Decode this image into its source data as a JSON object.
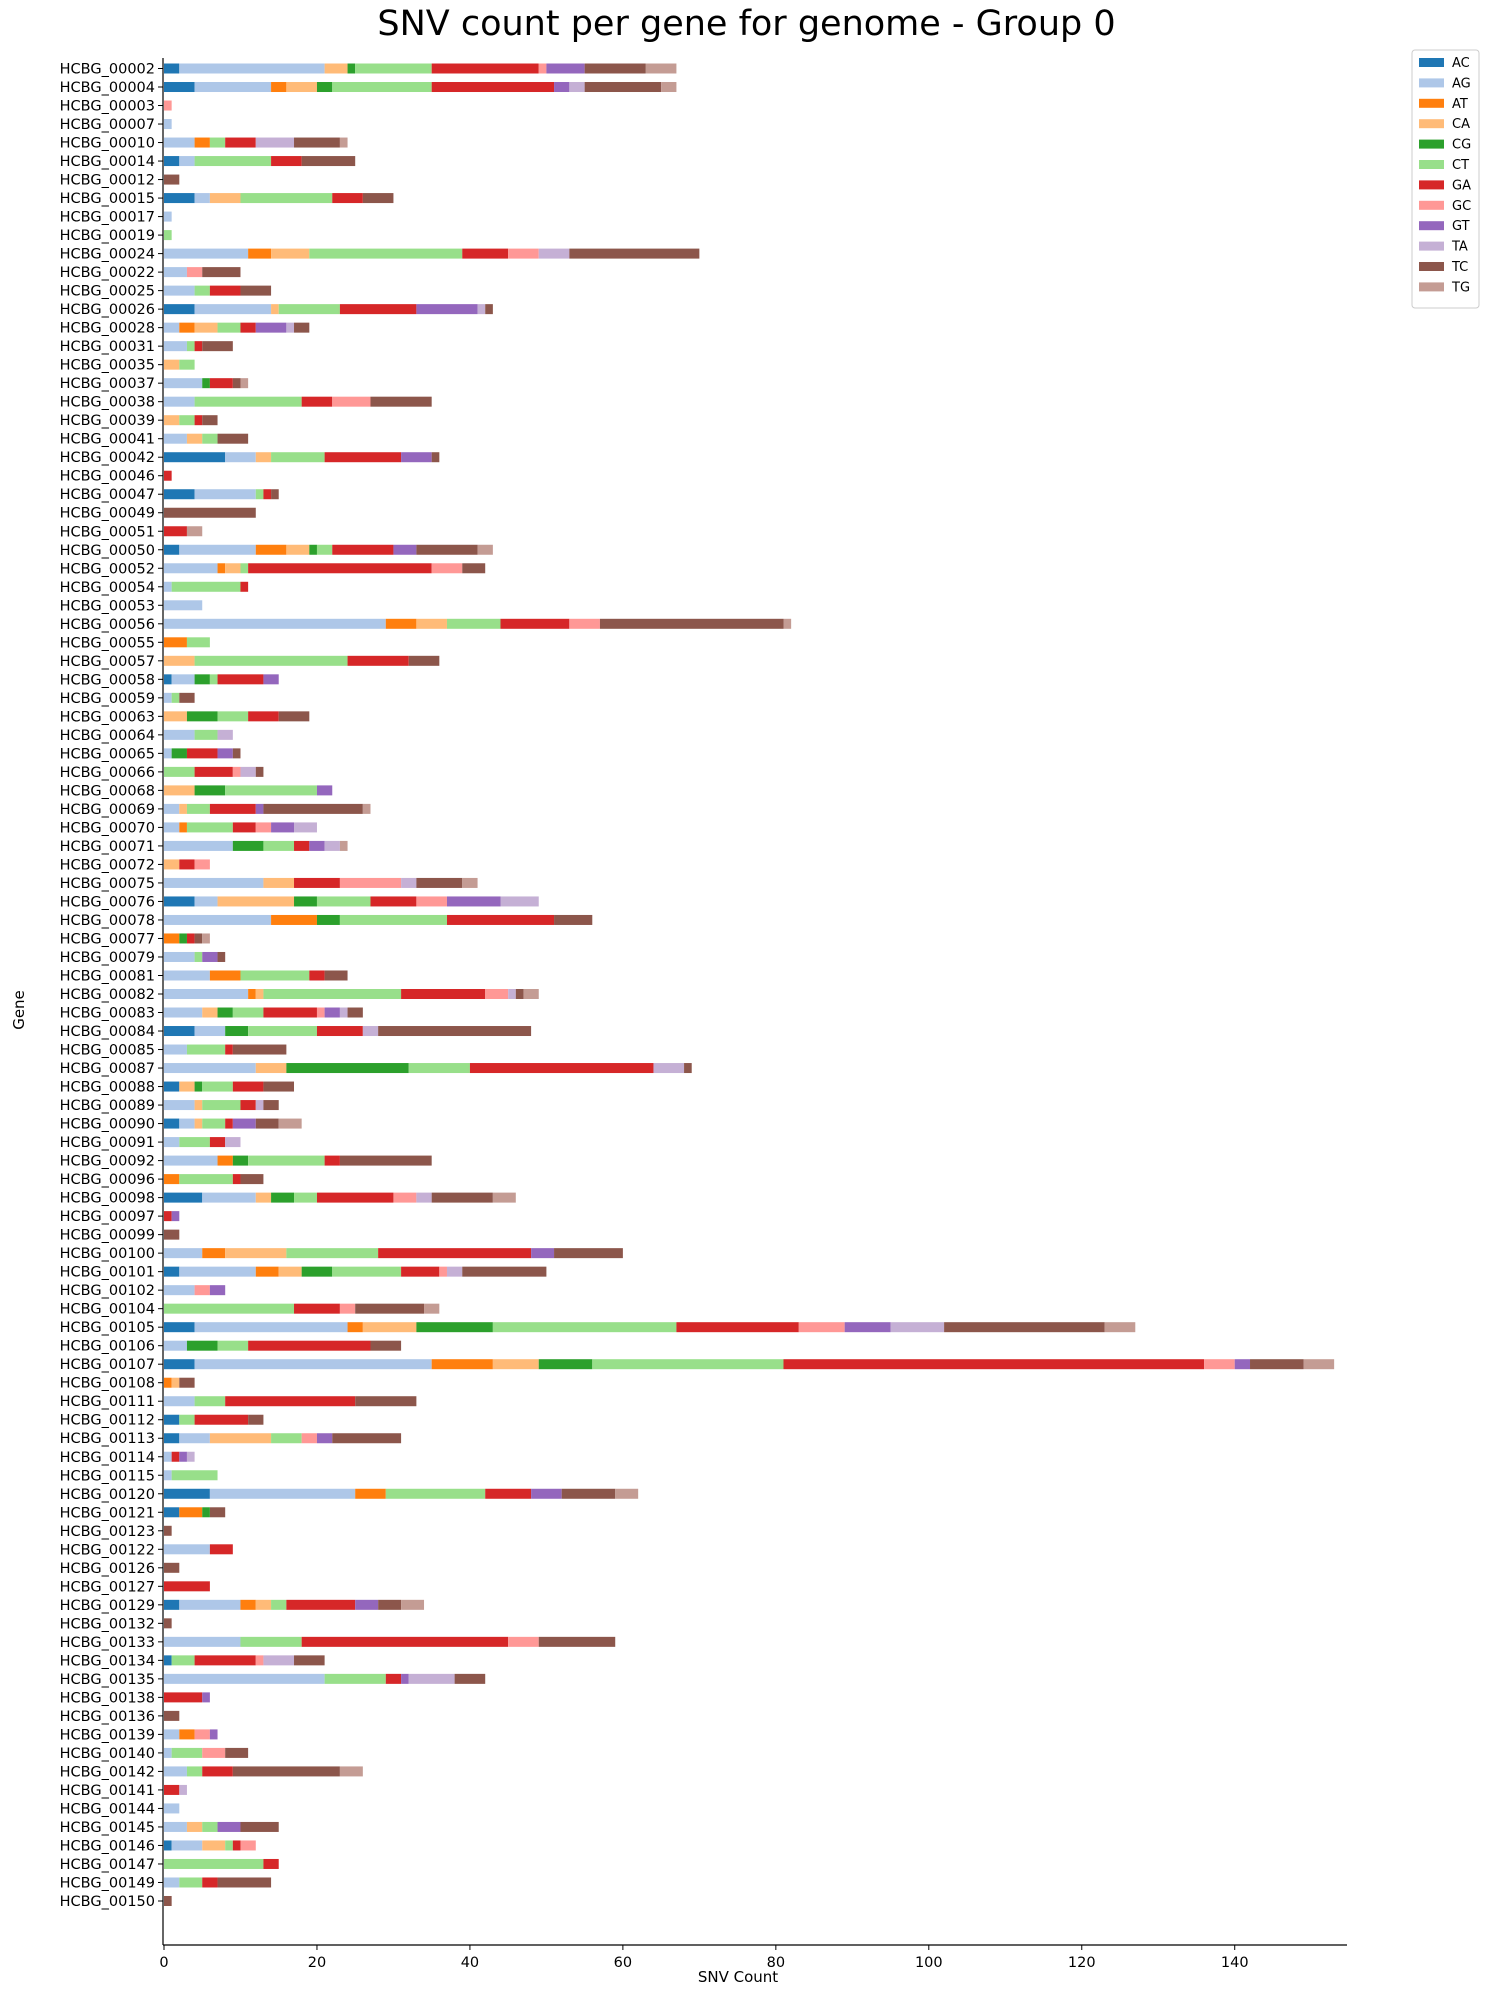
{
  "chart_data": {
    "type": "bar",
    "orientation": "horizontal",
    "stacked": true,
    "title": "SNV count per gene for genome - Group 0",
    "xlabel": "SNV Count",
    "ylabel": "Gene",
    "xlim": [
      0,
      155
    ],
    "xticks": [
      0,
      20,
      40,
      60,
      80,
      100,
      120,
      140
    ],
    "grid": false,
    "legend_position": "top-right outside",
    "series_names": [
      "AC",
      "AG",
      "AT",
      "CA",
      "CG",
      "CT",
      "GA",
      "GC",
      "GT",
      "TA",
      "TC",
      "TG"
    ],
    "series_colors": [
      "#1f77b4",
      "#aec7e8",
      "#ff7f0e",
      "#ffbb78",
      "#2ca02c",
      "#98df8a",
      "#d62728",
      "#ff9896",
      "#9467bd",
      "#c5b0d5",
      "#8c564b",
      "#c49c94"
    ],
    "categories": [
      "HCBG_00002",
      "HCBG_00004",
      "HCBG_00003",
      "HCBG_00007",
      "HCBG_00010",
      "HCBG_00014",
      "HCBG_00012",
      "HCBG_00015",
      "HCBG_00017",
      "HCBG_00019",
      "HCBG_00024",
      "HCBG_00022",
      "HCBG_00025",
      "HCBG_00026",
      "HCBG_00028",
      "HCBG_00031",
      "HCBG_00035",
      "HCBG_00037",
      "HCBG_00038",
      "HCBG_00039",
      "HCBG_00041",
      "HCBG_00042",
      "HCBG_00046",
      "HCBG_00047",
      "HCBG_00049",
      "HCBG_00051",
      "HCBG_00050",
      "HCBG_00052",
      "HCBG_00054",
      "HCBG_00053",
      "HCBG_00056",
      "HCBG_00055",
      "HCBG_00057",
      "HCBG_00058",
      "HCBG_00059",
      "HCBG_00063",
      "HCBG_00064",
      "HCBG_00065",
      "HCBG_00066",
      "HCBG_00068",
      "HCBG_00069",
      "HCBG_00070",
      "HCBG_00071",
      "HCBG_00072",
      "HCBG_00075",
      "HCBG_00076",
      "HCBG_00078",
      "HCBG_00077",
      "HCBG_00079",
      "HCBG_00081",
      "HCBG_00082",
      "HCBG_00083",
      "HCBG_00084",
      "HCBG_00085",
      "HCBG_00087",
      "HCBG_00088",
      "HCBG_00089",
      "HCBG_00090",
      "HCBG_00091",
      "HCBG_00092",
      "HCBG_00096",
      "HCBG_00098",
      "HCBG_00097",
      "HCBG_00099",
      "HCBG_00100",
      "HCBG_00101",
      "HCBG_00102",
      "HCBG_00104",
      "HCBG_00105",
      "HCBG_00106",
      "HCBG_00107",
      "HCBG_00108",
      "HCBG_00111",
      "HCBG_00112",
      "HCBG_00113",
      "HCBG_00114",
      "HCBG_00115",
      "HCBG_00120",
      "HCBG_00121",
      "HCBG_00123",
      "HCBG_00122",
      "HCBG_00126",
      "HCBG_00127",
      "HCBG_00129",
      "HCBG_00132",
      "HCBG_00133",
      "HCBG_00134",
      "HCBG_00135",
      "HCBG_00138",
      "HCBG_00136",
      "HCBG_00139",
      "HCBG_00140",
      "HCBG_00142",
      "HCBG_00141",
      "HCBG_00144",
      "HCBG_00145",
      "HCBG_00146",
      "HCBG_00147",
      "HCBG_00149",
      "HCBG_00150"
    ],
    "stacks": [
      [
        2,
        19,
        0,
        3,
        1,
        10,
        14,
        1,
        5,
        0,
        8,
        4
      ],
      [
        4,
        10,
        2,
        4,
        2,
        13,
        16,
        0,
        2,
        2,
        10,
        2
      ],
      [
        0,
        0,
        0,
        0,
        0,
        0,
        0,
        1,
        0,
        0,
        0,
        0
      ],
      [
        0,
        1,
        0,
        0,
        0,
        0,
        0,
        0,
        0,
        0,
        0,
        0
      ],
      [
        0,
        4,
        2,
        0,
        0,
        2,
        4,
        0,
        0,
        5,
        6,
        1
      ],
      [
        2,
        2,
        0,
        0,
        0,
        10,
        4,
        0,
        0,
        0,
        7,
        0
      ],
      [
        0,
        0,
        0,
        0,
        0,
        0,
        0,
        0,
        0,
        0,
        2,
        0
      ],
      [
        4,
        2,
        0,
        4,
        0,
        12,
        4,
        0,
        0,
        0,
        4,
        0
      ],
      [
        0,
        1,
        0,
        0,
        0,
        0,
        0,
        0,
        0,
        0,
        0,
        0
      ],
      [
        0,
        0,
        0,
        0,
        0,
        1,
        0,
        0,
        0,
        0,
        0,
        0
      ],
      [
        0,
        11,
        3,
        5,
        0,
        20,
        6,
        4,
        0,
        4,
        17,
        0
      ],
      [
        0,
        3,
        0,
        0,
        0,
        0,
        0,
        2,
        0,
        0,
        5,
        0
      ],
      [
        0,
        4,
        0,
        0,
        0,
        2,
        4,
        0,
        0,
        0,
        4,
        0
      ],
      [
        4,
        10,
        0,
        1,
        0,
        8,
        10,
        0,
        8,
        1,
        1,
        0
      ],
      [
        0,
        2,
        2,
        3,
        0,
        3,
        2,
        0,
        4,
        1,
        2,
        0
      ],
      [
        0,
        3,
        0,
        0,
        0,
        1,
        1,
        0,
        0,
        0,
        4,
        0
      ],
      [
        0,
        0,
        0,
        2,
        0,
        2,
        0,
        0,
        0,
        0,
        0,
        0
      ],
      [
        0,
        5,
        0,
        0,
        1,
        0,
        3,
        0,
        0,
        0,
        1,
        1
      ],
      [
        0,
        4,
        0,
        0,
        0,
        14,
        4,
        5,
        0,
        0,
        8,
        0
      ],
      [
        0,
        0,
        0,
        2,
        0,
        2,
        1,
        0,
        0,
        0,
        2,
        0
      ],
      [
        0,
        3,
        0,
        2,
        0,
        2,
        0,
        0,
        0,
        0,
        4,
        0
      ],
      [
        8,
        4,
        0,
        2,
        0,
        7,
        10,
        0,
        4,
        0,
        1,
        0
      ],
      [
        0,
        0,
        0,
        0,
        0,
        0,
        1,
        0,
        0,
        0,
        0,
        0
      ],
      [
        4,
        8,
        0,
        0,
        0,
        1,
        1,
        0,
        0,
        0,
        1,
        0
      ],
      [
        0,
        0,
        0,
        0,
        0,
        0,
        0,
        0,
        0,
        0,
        12,
        0
      ],
      [
        0,
        0,
        0,
        0,
        0,
        0,
        3,
        0,
        0,
        0,
        0,
        2
      ],
      [
        2,
        10,
        4,
        3,
        1,
        2,
        8,
        0,
        3,
        0,
        8,
        2
      ],
      [
        0,
        7,
        1,
        2,
        0,
        1,
        24,
        4,
        0,
        0,
        3,
        0
      ],
      [
        0,
        1,
        0,
        0,
        0,
        9,
        1,
        0,
        0,
        0,
        0,
        0
      ],
      [
        0,
        5,
        0,
        0,
        0,
        0,
        0,
        0,
        0,
        0,
        0,
        0
      ],
      [
        0,
        29,
        4,
        4,
        0,
        7,
        9,
        4,
        0,
        0,
        24,
        1
      ],
      [
        0,
        0,
        3,
        0,
        0,
        3,
        0,
        0,
        0,
        0,
        0,
        0
      ],
      [
        0,
        0,
        0,
        4,
        0,
        20,
        8,
        0,
        0,
        0,
        4,
        0
      ],
      [
        1,
        3,
        0,
        0,
        2,
        1,
        6,
        0,
        2,
        0,
        0,
        0
      ],
      [
        0,
        1,
        0,
        0,
        0,
        1,
        0,
        0,
        0,
        0,
        2,
        0
      ],
      [
        0,
        0,
        0,
        3,
        4,
        4,
        4,
        0,
        0,
        0,
        4,
        0
      ],
      [
        0,
        4,
        0,
        0,
        0,
        3,
        0,
        0,
        0,
        2,
        0,
        0
      ],
      [
        0,
        1,
        0,
        0,
        2,
        0,
        4,
        0,
        2,
        0,
        1,
        0
      ],
      [
        0,
        0,
        0,
        0,
        0,
        4,
        5,
        1,
        0,
        2,
        1,
        0
      ],
      [
        0,
        0,
        0,
        4,
        4,
        12,
        0,
        0,
        2,
        0,
        0,
        0
      ],
      [
        0,
        2,
        0,
        1,
        0,
        3,
        6,
        0,
        1,
        0,
        13,
        1
      ],
      [
        0,
        2,
        1,
        0,
        0,
        6,
        3,
        2,
        3,
        3,
        0,
        0
      ],
      [
        0,
        9,
        0,
        0,
        4,
        4,
        2,
        0,
        2,
        2,
        0,
        1
      ],
      [
        0,
        0,
        0,
        2,
        0,
        0,
        2,
        2,
        0,
        0,
        0,
        0
      ],
      [
        0,
        13,
        0,
        4,
        0,
        0,
        6,
        8,
        0,
        2,
        6,
        2
      ],
      [
        4,
        3,
        0,
        10,
        3,
        7,
        6,
        4,
        7,
        5,
        0,
        0
      ],
      [
        0,
        14,
        6,
        0,
        3,
        14,
        14,
        0,
        0,
        0,
        5,
        0
      ],
      [
        0,
        0,
        2,
        0,
        1,
        0,
        1,
        0,
        0,
        0,
        1,
        1
      ],
      [
        0,
        4,
        0,
        0,
        0,
        1,
        0,
        0,
        2,
        0,
        1,
        0
      ],
      [
        0,
        6,
        4,
        0,
        0,
        9,
        2,
        0,
        0,
        0,
        3,
        0
      ],
      [
        0,
        11,
        1,
        1,
        0,
        18,
        11,
        3,
        0,
        1,
        1,
        2
      ],
      [
        0,
        5,
        0,
        2,
        2,
        4,
        7,
        1,
        2,
        1,
        2,
        0
      ],
      [
        4,
        4,
        0,
        0,
        3,
        9,
        6,
        0,
        0,
        2,
        20,
        0
      ],
      [
        0,
        3,
        0,
        0,
        0,
        5,
        1,
        0,
        0,
        0,
        7,
        0
      ],
      [
        0,
        12,
        0,
        4,
        16,
        8,
        24,
        0,
        0,
        4,
        1,
        0
      ],
      [
        2,
        0,
        0,
        2,
        1,
        4,
        4,
        0,
        0,
        0,
        4,
        0
      ],
      [
        0,
        4,
        0,
        1,
        0,
        5,
        2,
        0,
        0,
        1,
        2,
        0
      ],
      [
        2,
        2,
        0,
        1,
        0,
        3,
        1,
        0,
        3,
        0,
        3,
        3
      ],
      [
        0,
        2,
        0,
        0,
        0,
        4,
        2,
        0,
        0,
        2,
        0,
        0
      ],
      [
        0,
        7,
        2,
        0,
        2,
        10,
        2,
        0,
        0,
        0,
        12,
        0
      ],
      [
        0,
        0,
        2,
        0,
        0,
        7,
        1,
        0,
        0,
        0,
        3,
        0
      ],
      [
        5,
        7,
        0,
        2,
        3,
        3,
        10,
        3,
        0,
        2,
        8,
        3
      ],
      [
        0,
        0,
        0,
        0,
        0,
        0,
        1,
        0,
        1,
        0,
        0,
        0
      ],
      [
        0,
        0,
        0,
        0,
        0,
        0,
        0,
        0,
        0,
        0,
        2,
        0
      ],
      [
        0,
        5,
        3,
        8,
        0,
        12,
        20,
        0,
        3,
        0,
        9,
        0
      ],
      [
        2,
        10,
        3,
        3,
        4,
        9,
        5,
        1,
        0,
        2,
        11,
        0
      ],
      [
        0,
        4,
        0,
        0,
        0,
        0,
        0,
        2,
        2,
        0,
        0,
        0
      ],
      [
        0,
        0,
        0,
        0,
        0,
        17,
        6,
        2,
        0,
        0,
        9,
        2
      ],
      [
        4,
        20,
        2,
        7,
        10,
        24,
        16,
        6,
        6,
        7,
        21,
        4
      ],
      [
        0,
        3,
        0,
        0,
        4,
        4,
        16,
        0,
        0,
        0,
        4,
        0
      ],
      [
        4,
        31,
        8,
        6,
        7,
        25,
        55,
        4,
        2,
        0,
        7,
        4
      ],
      [
        0,
        0,
        1,
        1,
        0,
        0,
        0,
        0,
        0,
        0,
        2,
        0
      ],
      [
        0,
        4,
        0,
        0,
        0,
        4,
        17,
        0,
        0,
        0,
        8,
        0
      ],
      [
        2,
        0,
        0,
        0,
        0,
        2,
        7,
        0,
        0,
        0,
        2,
        0
      ],
      [
        2,
        4,
        0,
        8,
        0,
        4,
        0,
        2,
        2,
        0,
        9,
        0
      ],
      [
        0,
        1,
        0,
        0,
        0,
        0,
        1,
        0,
        1,
        1,
        0,
        0
      ],
      [
        0,
        1,
        0,
        0,
        0,
        6,
        0,
        0,
        0,
        0,
        0,
        0
      ],
      [
        6,
        19,
        4,
        0,
        0,
        13,
        6,
        0,
        4,
        0,
        7,
        3
      ],
      [
        2,
        0,
        3,
        0,
        1,
        0,
        0,
        0,
        0,
        0,
        2,
        0
      ],
      [
        0,
        0,
        0,
        0,
        0,
        0,
        0,
        0,
        0,
        0,
        1,
        0
      ],
      [
        0,
        6,
        0,
        0,
        0,
        0,
        3,
        0,
        0,
        0,
        0,
        0
      ],
      [
        0,
        0,
        0,
        0,
        0,
        0,
        0,
        0,
        0,
        0,
        2,
        0
      ],
      [
        0,
        0,
        0,
        0,
        0,
        0,
        6,
        0,
        0,
        0,
        0,
        0
      ],
      [
        2,
        8,
        2,
        2,
        0,
        2,
        9,
        0,
        3,
        0,
        3,
        3
      ],
      [
        0,
        0,
        0,
        0,
        0,
        0,
        0,
        0,
        0,
        0,
        1,
        0
      ],
      [
        0,
        10,
        0,
        0,
        0,
        8,
        27,
        4,
        0,
        0,
        10,
        0
      ],
      [
        1,
        0,
        0,
        0,
        0,
        3,
        8,
        1,
        0,
        4,
        4,
        0
      ],
      [
        0,
        21,
        0,
        0,
        0,
        8,
        2,
        0,
        1,
        6,
        4,
        0
      ],
      [
        0,
        0,
        0,
        0,
        0,
        0,
        5,
        0,
        1,
        0,
        0,
        0
      ],
      [
        0,
        0,
        0,
        0,
        0,
        0,
        0,
        0,
        0,
        0,
        2,
        0
      ],
      [
        0,
        2,
        2,
        0,
        0,
        0,
        0,
        2,
        1,
        0,
        0,
        0
      ],
      [
        0,
        1,
        0,
        0,
        0,
        4,
        0,
        3,
        0,
        0,
        3,
        0
      ],
      [
        0,
        3,
        0,
        0,
        0,
        2,
        4,
        0,
        0,
        0,
        14,
        3
      ],
      [
        0,
        0,
        0,
        0,
        0,
        0,
        2,
        0,
        0,
        1,
        0,
        0
      ],
      [
        0,
        2,
        0,
        0,
        0,
        0,
        0,
        0,
        0,
        0,
        0,
        0
      ],
      [
        0,
        3,
        0,
        2,
        0,
        2,
        0,
        0,
        3,
        0,
        5,
        0
      ],
      [
        1,
        4,
        0,
        3,
        0,
        1,
        1,
        2,
        0,
        0,
        0,
        0
      ],
      [
        0,
        0,
        0,
        0,
        0,
        13,
        2,
        0,
        0,
        0,
        0,
        0
      ],
      [
        0,
        2,
        0,
        0,
        0,
        3,
        2,
        0,
        0,
        0,
        7,
        0
      ],
      [
        0,
        0,
        0,
        0,
        0,
        0,
        0,
        0,
        0,
        0,
        1,
        0
      ]
    ]
  }
}
